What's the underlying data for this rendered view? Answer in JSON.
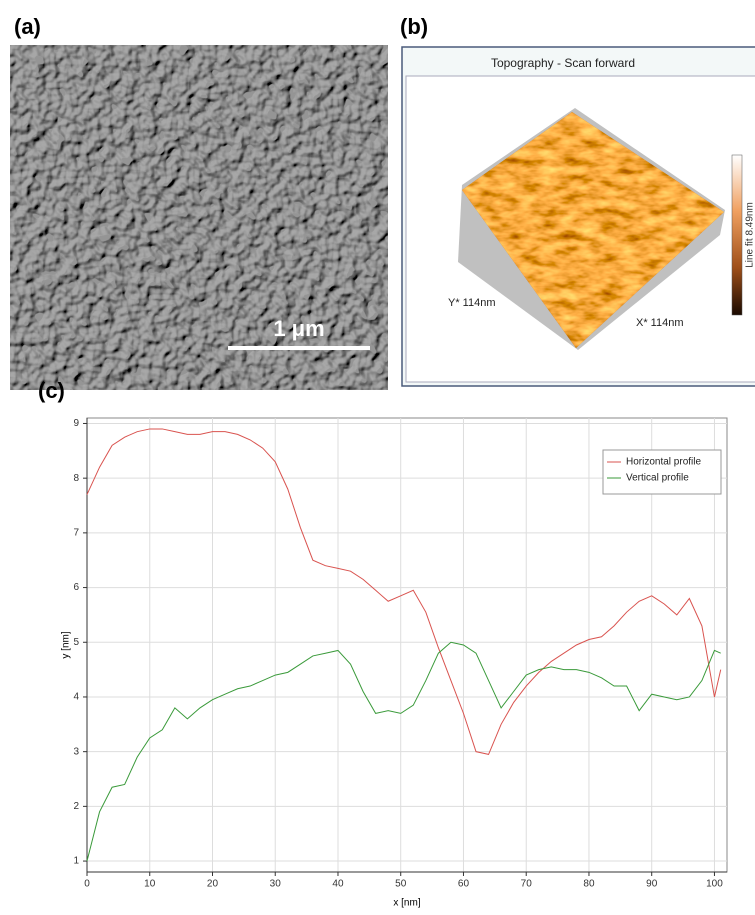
{
  "panels": {
    "a": {
      "label": "(a)",
      "scale_bar": "1 μm"
    },
    "b": {
      "label": "(b)",
      "title": "Topography - Scan forward",
      "y_axis": "Y* 114nm",
      "x_axis": "X* 114nm",
      "colorbar": "Line fit 8.49nm"
    },
    "c": {
      "label": "(c)"
    }
  },
  "chart_data": {
    "type": "line",
    "xlabel": "x [nm]",
    "ylabel": "y [nm]",
    "x": [
      0,
      2,
      4,
      6,
      8,
      10,
      12,
      14,
      16,
      18,
      20,
      22,
      24,
      26,
      28,
      30,
      32,
      34,
      36,
      38,
      40,
      42,
      44,
      46,
      48,
      50,
      52,
      54,
      56,
      58,
      60,
      62,
      64,
      66,
      68,
      70,
      72,
      74,
      76,
      78,
      80,
      82,
      84,
      86,
      88,
      90,
      92,
      94,
      96,
      98,
      100,
      101
    ],
    "series": [
      {
        "name": "Horizontal profile",
        "color": "#d9534f",
        "values": [
          7.7,
          8.2,
          8.6,
          8.75,
          8.85,
          8.9,
          8.9,
          8.85,
          8.8,
          8.8,
          8.85,
          8.85,
          8.8,
          8.7,
          8.55,
          8.3,
          7.8,
          7.1,
          6.5,
          6.4,
          6.35,
          6.3,
          6.15,
          5.95,
          5.75,
          5.85,
          5.95,
          5.55,
          4.9,
          4.3,
          3.7,
          3.0,
          2.95,
          3.5,
          3.9,
          4.2,
          4.45,
          4.65,
          4.8,
          4.95,
          5.05,
          5.1,
          5.3,
          5.55,
          5.75,
          5.85,
          5.7,
          5.5,
          5.8,
          5.3,
          4.0,
          4.5
        ]
      },
      {
        "name": "Vertical profile",
        "color": "#3a9a3a",
        "values": [
          1.0,
          1.9,
          2.35,
          2.4,
          2.9,
          3.25,
          3.4,
          3.8,
          3.6,
          3.8,
          3.95,
          4.05,
          4.15,
          4.2,
          4.3,
          4.4,
          4.45,
          4.6,
          4.75,
          4.8,
          4.85,
          4.6,
          4.1,
          3.7,
          3.75,
          3.7,
          3.85,
          4.3,
          4.8,
          5.0,
          4.95,
          4.8,
          4.3,
          3.8,
          4.1,
          4.4,
          4.5,
          4.55,
          4.5,
          4.5,
          4.45,
          4.35,
          4.2,
          4.2,
          3.75,
          4.05,
          4.0,
          3.95,
          4.0,
          4.3,
          4.85,
          4.8
        ]
      }
    ],
    "xlim": [
      0,
      102
    ],
    "ylim": [
      0.8,
      9.1
    ],
    "xticks": [
      0,
      10,
      20,
      30,
      40,
      50,
      60,
      70,
      80,
      90,
      100
    ],
    "yticks": [
      1,
      2,
      3,
      4,
      5,
      6,
      7,
      8,
      9
    ],
    "grid": true,
    "legend": "upper right"
  }
}
